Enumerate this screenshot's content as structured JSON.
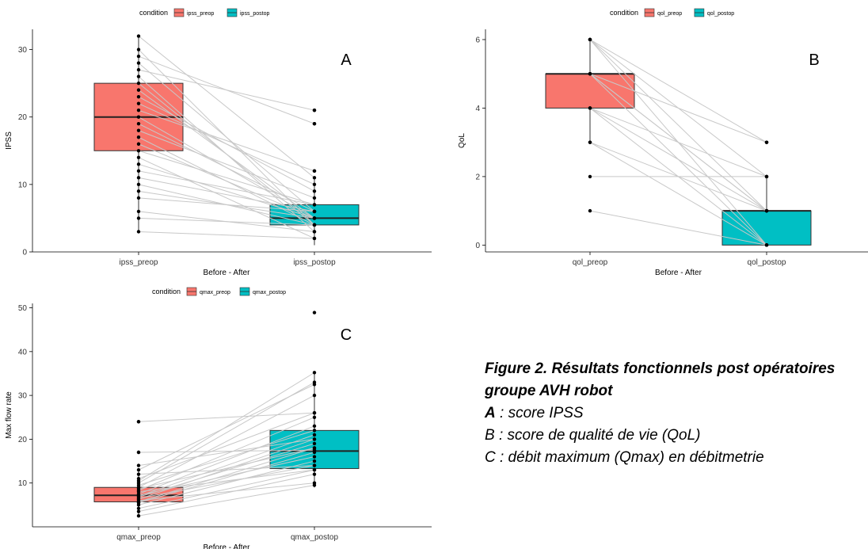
{
  "chart_data": [
    {
      "type": "boxplot",
      "panel_letter": "A",
      "ylabel": "IPSS",
      "xlabel": "Before - After",
      "legend_title": "condition",
      "legend_position": "top",
      "categories": [
        "ipss_preop",
        "ipss_postop"
      ],
      "colors": [
        "#F8766D",
        "#00BFC4"
      ],
      "ylim": [
        0,
        33
      ],
      "yticks": [
        0,
        10,
        20,
        30
      ],
      "boxes": [
        {
          "name": "ipss_preop",
          "min": 3,
          "q1": 15,
          "median": 20,
          "q3": 25,
          "max": 32
        },
        {
          "name": "ipss_postop",
          "min": 1,
          "q1": 4,
          "median": 5,
          "q3": 7,
          "max": 11
        }
      ],
      "points": [
        [
          3,
          2
        ],
        [
          5,
          4
        ],
        [
          6,
          3
        ],
        [
          8,
          6
        ],
        [
          9,
          5
        ],
        [
          10,
          4
        ],
        [
          11,
          6
        ],
        [
          12,
          7
        ],
        [
          13,
          5
        ],
        [
          14,
          2
        ],
        [
          15,
          7
        ],
        [
          16,
          5
        ],
        [
          17,
          4
        ],
        [
          18,
          8
        ],
        [
          19,
          6
        ],
        [
          20,
          5
        ],
        [
          21,
          12
        ],
        [
          22,
          10
        ],
        [
          23,
          9
        ],
        [
          24,
          5
        ],
        [
          25,
          4
        ],
        [
          26,
          3
        ],
        [
          27,
          21
        ],
        [
          28,
          6
        ],
        [
          29,
          19
        ],
        [
          30,
          4
        ],
        [
          32,
          11
        ]
      ],
      "outliers_postop": [
        12,
        19,
        21
      ]
    },
    {
      "type": "boxplot",
      "panel_letter": "B",
      "ylabel": "QoL",
      "xlabel": "Before - After",
      "legend_title": "condition",
      "legend_position": "top",
      "categories": [
        "qol_preop",
        "qol_postop"
      ],
      "colors": [
        "#F8766D",
        "#00BFC4"
      ],
      "ylim": [
        -0.2,
        6.3
      ],
      "yticks": [
        0,
        2,
        4,
        6
      ],
      "boxes": [
        {
          "name": "qol_preop",
          "min": 3,
          "q1": 4,
          "median": 5,
          "q3": 5,
          "max": 6
        },
        {
          "name": "qol_postop",
          "min": 0,
          "q1": 0,
          "median": 1,
          "q3": 1,
          "max": 2
        }
      ],
      "points": [
        [
          1,
          0
        ],
        [
          2,
          2
        ],
        [
          3,
          1
        ],
        [
          3,
          0
        ],
        [
          4,
          1
        ],
        [
          4,
          0
        ],
        [
          4,
          2
        ],
        [
          5,
          1
        ],
        [
          5,
          0
        ],
        [
          5,
          3
        ],
        [
          5,
          1
        ],
        [
          6,
          1
        ],
        [
          6,
          2
        ],
        [
          6,
          3
        ],
        [
          6,
          0
        ]
      ],
      "outliers_postop": [
        3
      ]
    },
    {
      "type": "boxplot",
      "panel_letter": "C",
      "ylabel": "Max flow rate",
      "xlabel": "Before - After",
      "legend_title": "condition",
      "legend_position": "top",
      "categories": [
        "qmax_preop",
        "qmax_postop"
      ],
      "colors": [
        "#F8766D",
        "#00BFC4"
      ],
      "ylim": [
        0,
        51
      ],
      "yticks": [
        10,
        20,
        30,
        40,
        50
      ],
      "boxes": [
        {
          "name": "qmax_preop",
          "min": 2.5,
          "q1": 5.7,
          "median": 7.2,
          "q3": 9,
          "max": 13
        },
        {
          "name": "qmax_postop",
          "min": 9,
          "q1": 13.3,
          "median": 17.3,
          "q3": 22,
          "max": 35.2
        }
      ],
      "points": [
        [
          2.5,
          9.5
        ],
        [
          3.5,
          12
        ],
        [
          4.2,
          13
        ],
        [
          5,
          15
        ],
        [
          5.5,
          17
        ],
        [
          5.7,
          18
        ],
        [
          6,
          10
        ],
        [
          6.3,
          20
        ],
        [
          6.5,
          14
        ],
        [
          6.8,
          19
        ],
        [
          7,
          21
        ],
        [
          7.2,
          16
        ],
        [
          7.5,
          23
        ],
        [
          8,
          13
        ],
        [
          8.3,
          25
        ],
        [
          8.7,
          18
        ],
        [
          9,
          30
        ],
        [
          9.5,
          22
        ],
        [
          10,
          33
        ],
        [
          10.5,
          35.2
        ],
        [
          11,
          26
        ],
        [
          12,
          14
        ],
        [
          13,
          32.5
        ],
        [
          14,
          20
        ],
        [
          17,
          17.5
        ],
        [
          24,
          26
        ]
      ],
      "outliers_postop": [
        48.9
      ],
      "outliers_preop": [
        17,
        24
      ]
    }
  ],
  "caption": {
    "title_line1": "Figure 2. Résultats fonctionnels post opératoires",
    "title_line2": "groupe AVH robot",
    "a_letter": "A",
    "a_text": " : score IPSS",
    "b_line": "B : score de qualité de vie (QoL)",
    "c_line": "C : débit maximum (Qmax) en débitmetrie"
  }
}
